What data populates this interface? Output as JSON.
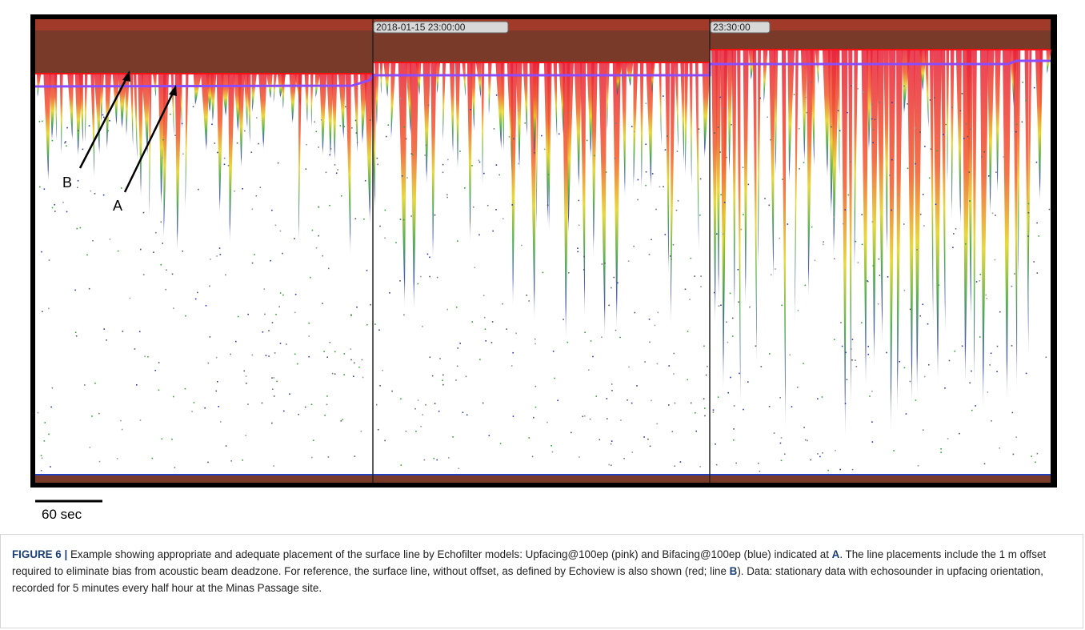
{
  "figure": {
    "timestamps": [
      "2018-01-15 23:00:00",
      "23:30:00"
    ],
    "line_labels": {
      "b": "B",
      "a": "A"
    },
    "scale_bar": "60 sec"
  },
  "caption": {
    "label": "FIGURE 6 |",
    "part1": " Example showing appropriate and adequate placement of the surface line by Echofilter models: Upfacing@100ep (pink) and Bifacing@100ep (blue) indicated at ",
    "bold_a": "A",
    "part2": ". The line placements include the 1 m offset required to eliminate bias from acoustic beam deadzone. For reference, the surface line, without offset, as defined by Echoview is also shown (red; line ",
    "bold_b": "B",
    "part3": "). Data: stationary data with echosounder in upfacing orientation, recorded for 5 minutes every half hour at the Minas Passage site."
  }
}
